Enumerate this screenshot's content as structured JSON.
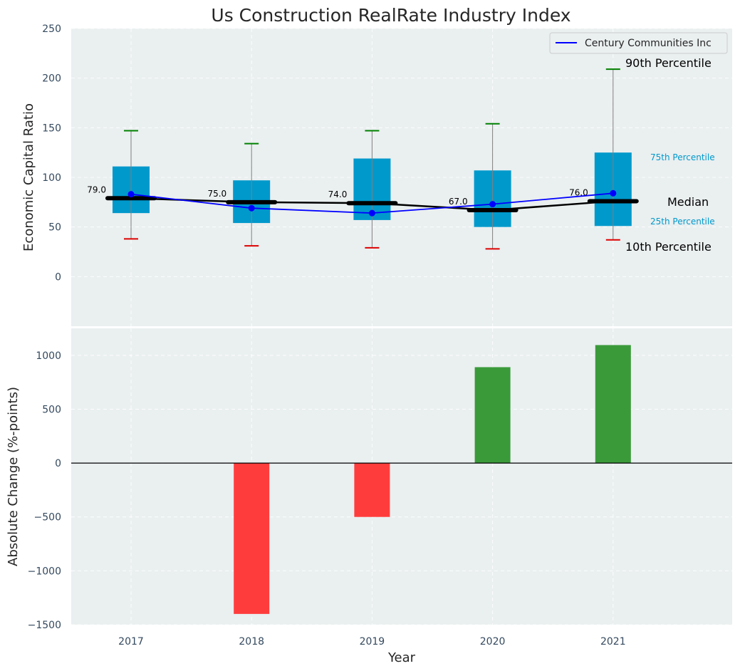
{
  "chart_data": [
    {
      "type": "box",
      "title": "Us Construction RealRate Industry Index",
      "xlabel": "",
      "ylabel": "Economic Capital Ratio",
      "ylim": [
        -50,
        250
      ],
      "yticks": [
        0,
        50,
        100,
        150,
        200,
        250
      ],
      "categories": [
        "2017",
        "2018",
        "2019",
        "2020",
        "2021"
      ],
      "boxes": [
        {
          "year": "2017",
          "p10": 38,
          "p25": 64,
          "median": 79,
          "p75": 111,
          "p90": 147,
          "median_label": "79.0"
        },
        {
          "year": "2018",
          "p10": 31,
          "p25": 54,
          "median": 75,
          "p75": 97,
          "p90": 134,
          "median_label": "75.0"
        },
        {
          "year": "2019",
          "p10": 29,
          "p25": 57,
          "median": 74,
          "p75": 119,
          "p90": 147,
          "median_label": "74.0"
        },
        {
          "year": "2020",
          "p10": 28,
          "p25": 50,
          "median": 67,
          "p75": 107,
          "p90": 154,
          "median_label": "67.0"
        },
        {
          "year": "2021",
          "p10": 37,
          "p25": 51,
          "median": 76,
          "p75": 125,
          "p90": 209,
          "median_label": "76.0"
        }
      ],
      "series": [
        {
          "name": "Century Communities Inc",
          "color": "#0000ff",
          "values": [
            83,
            69,
            64,
            73,
            84
          ]
        }
      ],
      "legend": {
        "label": "Century Communities Inc",
        "position": "top-right"
      },
      "annotations": {
        "p90": "90th Percentile",
        "p75": "75th Percentile",
        "median": "Median",
        "p25": "25th Percentile",
        "p10": "10th Percentile"
      },
      "colors": {
        "box": "#0099cc",
        "median": "#000000",
        "p90_cap": "#008000",
        "p10_cap": "#dd0000",
        "background": "#eaeff0"
      }
    },
    {
      "type": "bar",
      "xlabel": "Year",
      "ylabel": "Absolute Change (%-points)",
      "ylim": [
        -1500,
        1250
      ],
      "yticks": [
        -1500,
        -1000,
        -500,
        0,
        500,
        1000
      ],
      "categories": [
        "2017",
        "2018",
        "2019",
        "2020",
        "2021"
      ],
      "values": [
        0,
        -1400,
        -500,
        890,
        1095
      ],
      "colors": {
        "positive": "#3a9a3a",
        "negative": "#ff3c3c"
      }
    }
  ]
}
